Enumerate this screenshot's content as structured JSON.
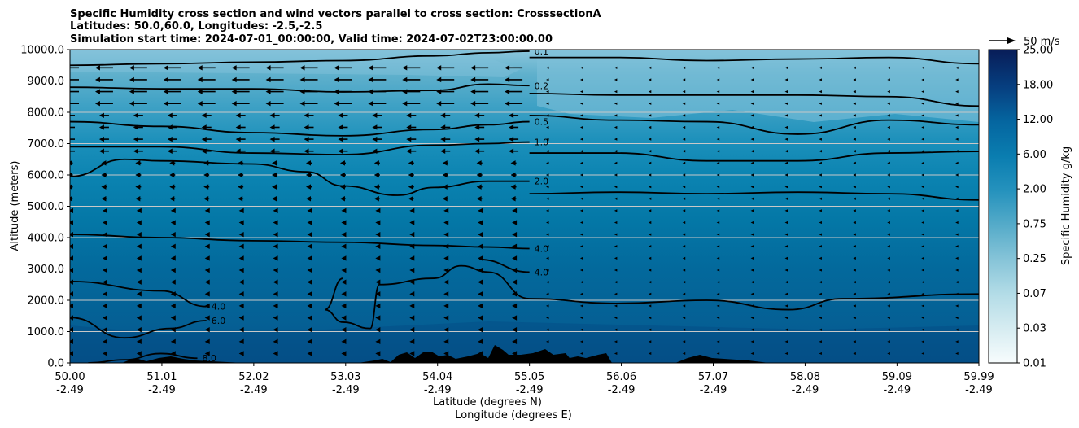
{
  "titles": [
    "Specific Humidity cross section and wind vectors parallel to cross section: CrosssectionA",
    "Latitudes: 50.0,60.0, Longitudes: -2.5,-2.5",
    "Simulation start time: 2024-07-01_00:00:00, Valid time: 2024-07-02T23:00:00.00"
  ],
  "quiver_key": "50 m/s",
  "chart_data": {
    "type": "heatmap",
    "xlabel": [
      "Latitude (degrees N)",
      "Longitude (degrees E)"
    ],
    "ylabel": "Altitude (meters)",
    "xlim": [
      50.0,
      59.99
    ],
    "ylim": [
      0,
      10000
    ],
    "x_ticks": [
      {
        "lat": "50.00",
        "lon": "-2.49",
        "v": 50.0
      },
      {
        "lat": "51.01",
        "lon": "-2.49",
        "v": 51.01
      },
      {
        "lat": "52.02",
        "lon": "-2.49",
        "v": 52.02
      },
      {
        "lat": "53.03",
        "lon": "-2.49",
        "v": 53.03
      },
      {
        "lat": "54.04",
        "lon": "-2.49",
        "v": 54.04
      },
      {
        "lat": "55.05",
        "lon": "-2.49",
        "v": 55.05
      },
      {
        "lat": "56.06",
        "lon": "-2.49",
        "v": 56.06
      },
      {
        "lat": "57.07",
        "lon": "-2.49",
        "v": 57.07
      },
      {
        "lat": "58.08",
        "lon": "-2.49",
        "v": 58.08
      },
      {
        "lat": "59.09",
        "lon": "-2.49",
        "v": 59.09
      },
      {
        "lat": "59.99",
        "lon": "-2.49",
        "v": 59.99
      }
    ],
    "y_ticks": [
      "0.0",
      "1000.0",
      "2000.0",
      "3000.0",
      "4000.0",
      "5000.0",
      "6000.0",
      "7000.0",
      "8000.0",
      "9000.0",
      "10000.0"
    ],
    "grid": "horizontal",
    "colorbar": {
      "label": "Specific Humidity g/kg",
      "tick_labels": [
        "0.01",
        "0.03",
        "0.07",
        "0.25",
        "0.75",
        "2.00",
        "6.00",
        "12.00",
        "18.00",
        "25.00"
      ]
    },
    "contours": [
      {
        "label": "0.1",
        "points": [
          [
            50.0,
            9500
          ],
          [
            51.0,
            9550
          ],
          [
            52.0,
            9600
          ],
          [
            53.0,
            9650
          ],
          [
            54.0,
            9800
          ],
          [
            54.6,
            9900
          ],
          [
            55.05,
            9950
          ]
        ]
      },
      {
        "label": "0.1",
        "points": [
          [
            55.05,
            9750
          ],
          [
            56.0,
            9750
          ],
          [
            57.0,
            9650
          ],
          [
            58.0,
            9700
          ],
          [
            59.0,
            9750
          ],
          [
            59.99,
            9550
          ]
        ]
      },
      {
        "label": "0.2",
        "points": [
          [
            50.0,
            8800
          ],
          [
            51.0,
            8750
          ],
          [
            52.0,
            8750
          ],
          [
            53.0,
            8650
          ],
          [
            54.0,
            8700
          ],
          [
            54.6,
            8900
          ],
          [
            55.05,
            8850
          ]
        ]
      },
      {
        "label": "0.2",
        "points": [
          [
            55.05,
            8600
          ],
          [
            56.0,
            8550
          ],
          [
            57.0,
            8550
          ],
          [
            58.0,
            8550
          ],
          [
            59.0,
            8500
          ],
          [
            59.99,
            8200
          ]
        ]
      },
      {
        "label": "0.5",
        "points": [
          [
            50.0,
            7700
          ],
          [
            51.0,
            7550
          ],
          [
            52.0,
            7350
          ],
          [
            53.0,
            7250
          ],
          [
            54.0,
            7450
          ],
          [
            54.6,
            7600
          ],
          [
            55.05,
            7700
          ]
        ]
      },
      {
        "label": "0.5",
        "points": [
          [
            55.05,
            7900
          ],
          [
            56.0,
            7750
          ],
          [
            57.0,
            7700
          ],
          [
            58.0,
            7300
          ],
          [
            59.0,
            7750
          ],
          [
            59.99,
            7600
          ]
        ]
      },
      {
        "label": "1.0",
        "points": [
          [
            50.0,
            6900
          ],
          [
            51.0,
            6900
          ],
          [
            52.0,
            6700
          ],
          [
            53.0,
            6650
          ],
          [
            54.0,
            6950
          ],
          [
            54.6,
            7000
          ],
          [
            55.05,
            7050
          ]
        ]
      },
      {
        "label": "1.0",
        "points": [
          [
            55.05,
            6700
          ],
          [
            56.0,
            6700
          ],
          [
            57.0,
            6450
          ],
          [
            58.0,
            6450
          ],
          [
            59.0,
            6700
          ],
          [
            59.99,
            6750
          ]
        ]
      },
      {
        "label": "2.0",
        "points": [
          [
            50.0,
            5950
          ],
          [
            50.6,
            6500
          ],
          [
            51.0,
            6450
          ],
          [
            52.0,
            6350
          ],
          [
            52.6,
            6100
          ],
          [
            53.0,
            5650
          ],
          [
            53.6,
            5350
          ],
          [
            54.0,
            5600
          ],
          [
            54.6,
            5800
          ],
          [
            55.05,
            5800
          ]
        ]
      },
      {
        "label": "2.0",
        "points": [
          [
            55.05,
            5400
          ],
          [
            56.0,
            5450
          ],
          [
            57.0,
            5400
          ],
          [
            58.0,
            5450
          ],
          [
            59.0,
            5400
          ],
          [
            59.99,
            5200
          ]
        ]
      },
      {
        "label": "4.0",
        "points": [
          [
            50.0,
            4100
          ],
          [
            51.0,
            4000
          ],
          [
            52.0,
            3900
          ],
          [
            53.0,
            3850
          ],
          [
            54.0,
            3750
          ],
          [
            54.6,
            3700
          ],
          [
            55.05,
            3650
          ]
        ]
      },
      {
        "label": "4.0",
        "points": [
          [
            54.5,
            3300
          ],
          [
            55.05,
            2900
          ]
        ]
      },
      {
        "label": "4.0",
        "points": [
          [
            50.0,
            2600
          ],
          [
            51.0,
            2300
          ],
          [
            51.5,
            1800
          ]
        ]
      },
      {
        "label": "4.0",
        "points": [
          [
            53.0,
            2700
          ],
          [
            52.8,
            1700
          ],
          [
            53.0,
            1300
          ],
          [
            53.3,
            1100
          ],
          [
            53.4,
            2500
          ],
          [
            54.0,
            2700
          ],
          [
            54.3,
            3100
          ],
          [
            54.6,
            2900
          ],
          [
            55.05,
            2050
          ],
          [
            56.0,
            1900
          ],
          [
            57.0,
            2000
          ],
          [
            57.9,
            1700
          ],
          [
            58.5,
            2050
          ],
          [
            59.99,
            2200
          ]
        ]
      },
      {
        "label": "6.0",
        "points": [
          [
            50.0,
            1450
          ],
          [
            50.6,
            800
          ],
          [
            51.1,
            1100
          ],
          [
            51.5,
            1350
          ]
        ]
      },
      {
        "label": "8.0",
        "points": [
          [
            50.2,
            0
          ],
          [
            50.6,
            100
          ],
          [
            51.0,
            300
          ],
          [
            51.4,
            150
          ]
        ]
      }
    ],
    "wind_vectors": "horizontal arrows pointing toward decreasing latitude; strongest (longest) near 8500-9500 m and latitudes 50-55"
  }
}
